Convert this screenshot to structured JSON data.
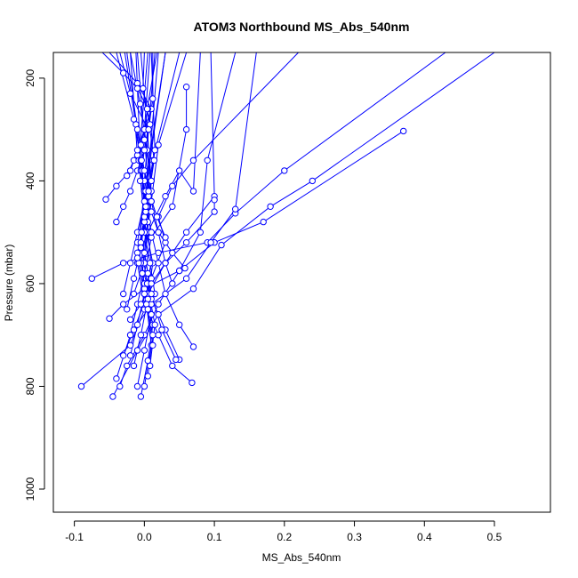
{
  "chart_data": {
    "type": "line",
    "title": "ATOM3 Northbound MS_Abs_540nm",
    "xlabel": "MS_Abs_540nm",
    "ylabel": "Pressure (mbar)",
    "xlim": [
      -0.13,
      0.58
    ],
    "ylim": [
      1045,
      150
    ],
    "y_reversed": true,
    "x_ticks": [
      -0.1,
      0.0,
      0.1,
      0.2,
      0.3,
      0.4,
      0.5
    ],
    "x_tick_labels": [
      "-0.1",
      "0.0",
      "0.1",
      "0.2",
      "0.3",
      "0.4",
      "0.5"
    ],
    "y_ticks": [
      200,
      400,
      600,
      800,
      1000
    ],
    "y_tick_labels": [
      "200",
      "400",
      "600",
      "800",
      "1000"
    ],
    "grid": false,
    "legend": "none",
    "series_color": "#0000ff",
    "series": [
      {
        "x": [
          -0.09,
          -0.02,
          0.0,
          0.01,
          0.03,
          0.02,
          0.04,
          0.07,
          0.22
        ],
        "y": [
          800,
          720,
          650,
          590,
          520,
          470,
          410,
          360,
          150
        ]
      },
      {
        "x": [
          -0.075,
          -0.03,
          0.02,
          0.09,
          0.13,
          0.2,
          0.43
        ],
        "y": [
          590,
          560,
          540,
          520,
          463,
          380,
          150
        ]
      },
      {
        "x": [
          -0.05,
          -0.03,
          0.0,
          0.05,
          0.1,
          0.17,
          0.37
        ],
        "y": [
          668,
          640,
          610,
          575,
          520,
          480,
          303
        ]
      },
      {
        "x": [
          -0.045,
          -0.01,
          0.02,
          0.07,
          0.11,
          0.18,
          0.24,
          0.5
        ],
        "y": [
          820,
          730,
          660,
          610,
          525,
          450,
          400,
          150
        ]
      },
      {
        "x": [
          -0.04,
          -0.02,
          0.01,
          0.06,
          0.095,
          0.13,
          0.16
        ],
        "y": [
          785,
          700,
          640,
          590,
          520,
          455,
          150
        ]
      },
      {
        "x": [
          -0.035,
          -0.025,
          0.0,
          0.02,
          0.05,
          0.08,
          0.09,
          0.13
        ],
        "y": [
          800,
          760,
          700,
          640,
          575,
          500,
          360,
          150
        ]
      },
      {
        "x": [
          -0.03,
          -0.015,
          0.005,
          0.03,
          0.06,
          0.1,
          0.095
        ],
        "y": [
          740,
          690,
          620,
          560,
          500,
          430,
          150
        ]
      },
      {
        "x": [
          -0.02,
          -0.01,
          0.0,
          0.01,
          0.04,
          0.06,
          0.06
        ],
        "y": [
          700,
          640,
          580,
          510,
          450,
          300,
          217
        ]
      },
      {
        "x": [
          -0.015,
          0.0,
          0.005,
          0.03,
          0.05,
          0.07,
          0.08
        ],
        "y": [
          620,
          560,
          500,
          430,
          380,
          420,
          150
        ]
      },
      {
        "x": [
          0.07,
          0.05,
          0.03,
          0.02,
          0.01,
          0.0,
          0.03
        ],
        "y": [
          723,
          680,
          620,
          560,
          500,
          420,
          150
        ]
      },
      {
        "x": [
          0.068,
          0.04,
          0.02,
          0.0,
          -0.01,
          0.0,
          0.02
        ],
        "y": [
          793,
          760,
          700,
          640,
          560,
          480,
          150
        ]
      },
      {
        "x": [
          0.05,
          0.03,
          0.01,
          -0.005,
          0.005,
          0.01,
          -0.005
        ],
        "y": [
          748,
          690,
          630,
          560,
          480,
          400,
          150
        ]
      },
      {
        "x": [
          0.058,
          0.04,
          0.02,
          0.01,
          0.0,
          -0.01,
          -0.02
        ],
        "y": [
          570,
          540,
          500,
          460,
          420,
          350,
          150
        ]
      },
      {
        "x": [
          -0.04,
          -0.03,
          -0.02,
          -0.01,
          0.0,
          0.005,
          -0.02,
          -0.035
        ],
        "y": [
          480,
          450,
          420,
          380,
          340,
          300,
          230,
          150
        ]
      },
      {
        "x": [
          -0.055,
          -0.04,
          -0.02,
          -0.01,
          0.0,
          0.01,
          -0.01,
          -0.05
        ],
        "y": [
          436,
          410,
          380,
          340,
          300,
          260,
          210,
          150
        ]
      },
      {
        "x": [
          -0.025,
          -0.015,
          -0.005,
          0.0,
          0.005,
          -0.01,
          -0.03,
          -0.06
        ],
        "y": [
          390,
          360,
          330,
          300,
          260,
          220,
          190,
          150
        ]
      },
      {
        "x": [
          -0.02,
          -0.01,
          0.0,
          0.01,
          0.005,
          -0.005,
          -0.012
        ],
        "y": [
          740,
          680,
          620,
          560,
          500,
          380,
          150
        ]
      },
      {
        "x": [
          -0.015,
          -0.005,
          0.005,
          0.012,
          0.0,
          -0.008,
          0.005
        ],
        "y": [
          760,
          700,
          630,
          560,
          480,
          360,
          150
        ]
      },
      {
        "x": [
          -0.01,
          0.0,
          0.01,
          0.005,
          -0.005,
          0.0,
          0.015
        ],
        "y": [
          800,
          730,
          660,
          580,
          500,
          400,
          150
        ]
      },
      {
        "x": [
          -0.005,
          0.005,
          0.012,
          0.0,
          -0.01,
          0.002,
          0.03
        ],
        "y": [
          820,
          750,
          680,
          600,
          520,
          420,
          150
        ]
      },
      {
        "x": [
          0.0,
          0.01,
          0.003,
          -0.008,
          0.0,
          0.012,
          0.05
        ],
        "y": [
          800,
          720,
          640,
          560,
          470,
          360,
          150
        ]
      },
      {
        "x": [
          0.005,
          0.012,
          0.0,
          -0.01,
          0.004,
          0.015,
          0.01
        ],
        "y": [
          780,
          700,
          620,
          540,
          450,
          340,
          150
        ]
      },
      {
        "x": [
          0.008,
          0.015,
          0.004,
          -0.005,
          0.008,
          0.0,
          -0.01
        ],
        "y": [
          760,
          680,
          600,
          520,
          440,
          320,
          150
        ]
      },
      {
        "x": [
          -0.03,
          -0.02,
          -0.01,
          0.0,
          -0.005,
          -0.015,
          -0.04
        ],
        "y": [
          620,
          560,
          500,
          440,
          360,
          280,
          150
        ]
      },
      {
        "x": [
          -0.025,
          -0.015,
          -0.005,
          0.002,
          -0.003,
          -0.012,
          -0.028
        ],
        "y": [
          650,
          590,
          530,
          460,
          380,
          290,
          150
        ]
      },
      {
        "x": [
          0.012,
          0.005,
          -0.003,
          0.003,
          0.01,
          0.0,
          0.008
        ],
        "y": [
          720,
          650,
          580,
          500,
          420,
          300,
          150
        ]
      },
      {
        "x": [
          0.015,
          0.008,
          0.0,
          0.006,
          0.014,
          0.004,
          0.018
        ],
        "y": [
          620,
          560,
          500,
          430,
          360,
          260,
          150
        ]
      },
      {
        "x": [
          -0.01,
          -0.004,
          0.004,
          0.01,
          0.004,
          -0.006,
          -0.02
        ],
        "y": [
          550,
          500,
          450,
          400,
          340,
          250,
          150
        ]
      },
      {
        "x": [
          0.01,
          0.002,
          -0.006,
          0.0,
          0.008,
          -0.002,
          0.0
        ],
        "y": [
          500,
          450,
          400,
          340,
          290,
          220,
          150
        ]
      },
      {
        "x": [
          0.045,
          0.025,
          0.01,
          0.0,
          0.01,
          0.02,
          0.06
        ],
        "y": [
          748,
          690,
          620,
          540,
          440,
          330,
          150
        ]
      },
      {
        "x": [
          0.03,
          0.018,
          0.006,
          -0.004,
          0.006,
          0.012,
          0.012
        ],
        "y": [
          510,
          470,
          420,
          360,
          300,
          240,
          150
        ]
      },
      {
        "x": [
          0.04,
          0.03,
          0.02,
          0.01,
          0.0,
          -0.01,
          -0.025
        ],
        "y": [
          600,
          560,
          500,
          440,
          380,
          300,
          150
        ]
      },
      {
        "x": [
          -0.02,
          -0.005,
          0.01,
          0.03,
          0.06,
          0.1,
          0.1
        ],
        "y": [
          670,
          640,
          600,
          560,
          520,
          460,
          437
        ]
      }
    ]
  }
}
